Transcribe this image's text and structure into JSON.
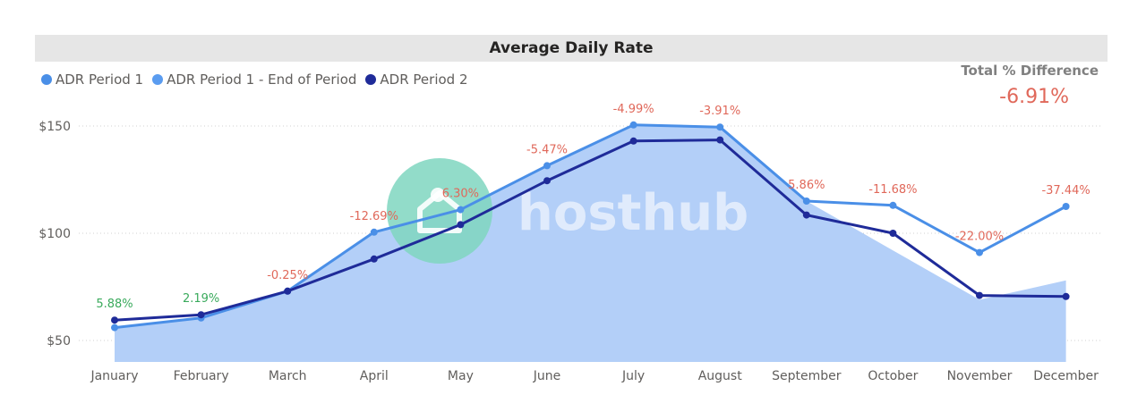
{
  "chart_data": {
    "type": "line",
    "title": "Average Daily Rate",
    "categories": [
      "January",
      "February",
      "March",
      "April",
      "May",
      "June",
      "July",
      "August",
      "September",
      "October",
      "November",
      "December"
    ],
    "y_ticks": [
      "$50",
      "$100",
      "$150"
    ],
    "y_tick_values": [
      50,
      100,
      150
    ],
    "ylim": [
      40,
      160
    ],
    "series": [
      {
        "name": "ADR Period 1",
        "type": "line",
        "color": "#4a8fe7",
        "values": [
          56,
          60.5,
          73,
          100.5,
          111,
          131.5,
          150.5,
          149.5,
          115,
          113,
          91,
          112.5
        ]
      },
      {
        "name": "ADR Period 1 - End of Period",
        "type": "area",
        "color": "#4a8fe7",
        "fill": "#b3cff8",
        "values": [
          56,
          60.5,
          73,
          100.5,
          111,
          131.5,
          150.5,
          149.5,
          115,
          92,
          69,
          78
        ]
      },
      {
        "name": "ADR Period 2",
        "type": "line",
        "color": "#1f2b99",
        "values": [
          59.5,
          62,
          73,
          88,
          104,
          124.5,
          143,
          143.5,
          108.5,
          100,
          71,
          70.5
        ]
      }
    ],
    "data_labels": [
      "5.88%",
      "2.19%",
      "-0.25%",
      "-12.69%",
      "6.30%",
      "-5.47%",
      "-4.99%",
      "-3.91%",
      "5.86%",
      "-11.68%",
      "-22.00%",
      "-37.44%"
    ],
    "data_label_colors": [
      "#3aaa5c",
      "#3aaa5c",
      "#e0685a",
      "#e0685a",
      "#e0685a",
      "#e0685a",
      "#e0685a",
      "#e0685a",
      "#e0685a",
      "#e0685a",
      "#e0685a",
      "#e0685a"
    ],
    "grid": true,
    "legend_position": "top-left"
  },
  "kpi": {
    "label": "Total % Difference",
    "value": "-6.91%"
  },
  "watermark": {
    "text": "hosthub",
    "badge_color": "#7fd6c0"
  }
}
